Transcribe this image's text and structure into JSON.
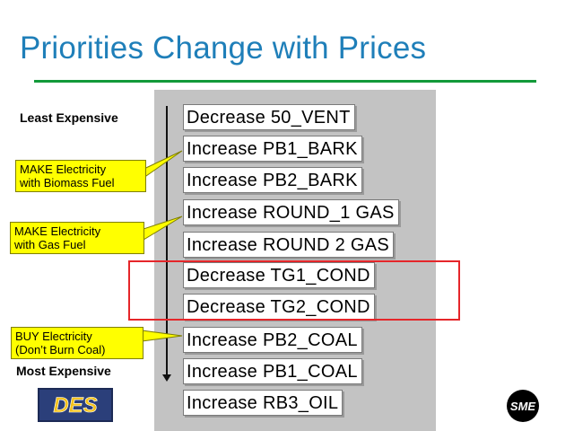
{
  "title": "Priorities Change with Prices",
  "order_labels": {
    "top": "Least Expensive",
    "bottom": "Most Expensive"
  },
  "actions": [
    "Decrease 50_VENT",
    "Increase PB1_BARK",
    "Increase PB2_BARK",
    "Increase ROUND_1 GAS",
    "Increase ROUND 2 GAS",
    "Decrease TG1_COND",
    "Decrease TG2_COND",
    "Increase PB2_COAL",
    "Increase PB1_COAL",
    "Increase RB3_OIL"
  ],
  "callouts": [
    {
      "line1": "MAKE Electricity",
      "line2": "with Biomass Fuel"
    },
    {
      "line1": "MAKE Electricity",
      "line2": "with Gas Fuel"
    },
    {
      "line1": "BUY Electricity",
      "line2": "(Don’t Burn Coal)"
    }
  ],
  "logos": {
    "left": "DES",
    "right": "SME"
  },
  "colors": {
    "title": "#1f7fb9",
    "rule": "#139a3a",
    "panel": "#c3c3c3",
    "callout": "#ffff00",
    "highlight": "#e5262a"
  }
}
